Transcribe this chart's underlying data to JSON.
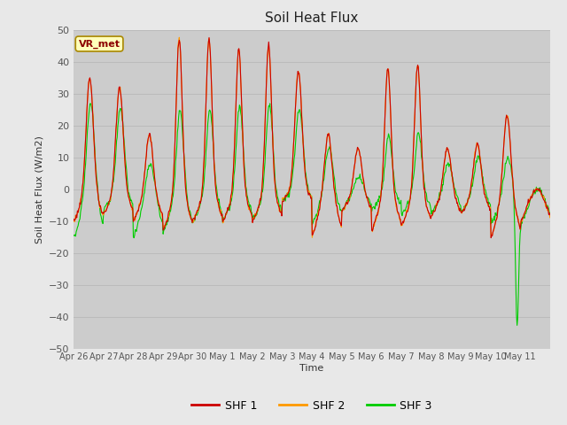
{
  "title": "Soil Heat Flux",
  "ylabel": "Soil Heat Flux (W/m2)",
  "xlabel": "Time",
  "ylim": [
    -50,
    50
  ],
  "yticks": [
    -50,
    -40,
    -30,
    -20,
    -10,
    0,
    10,
    20,
    30,
    40,
    50
  ],
  "xtick_labels": [
    "Apr 26",
    "Apr 27",
    "Apr 28",
    "Apr 29",
    "Apr 30",
    "May 1",
    "May 2",
    "May 3",
    "May 4",
    "May 5",
    "May 6",
    "May 7",
    "May 8",
    "May 9",
    "May 10",
    "May 11"
  ],
  "colors": {
    "SHF1": "#cc0000",
    "SHF2": "#ff9900",
    "SHF3": "#00cc00"
  },
  "legend_labels": [
    "SHF 1",
    "SHF 2",
    "SHF 3"
  ],
  "annotation_text": "VR_met",
  "annotation_bg": "#ffffbb",
  "annotation_border": "#aa8800",
  "fig_bg": "#e8e8e8",
  "plot_bg": "#cccccc",
  "grid_color": "#bbbbbb",
  "line_width": 0.8
}
